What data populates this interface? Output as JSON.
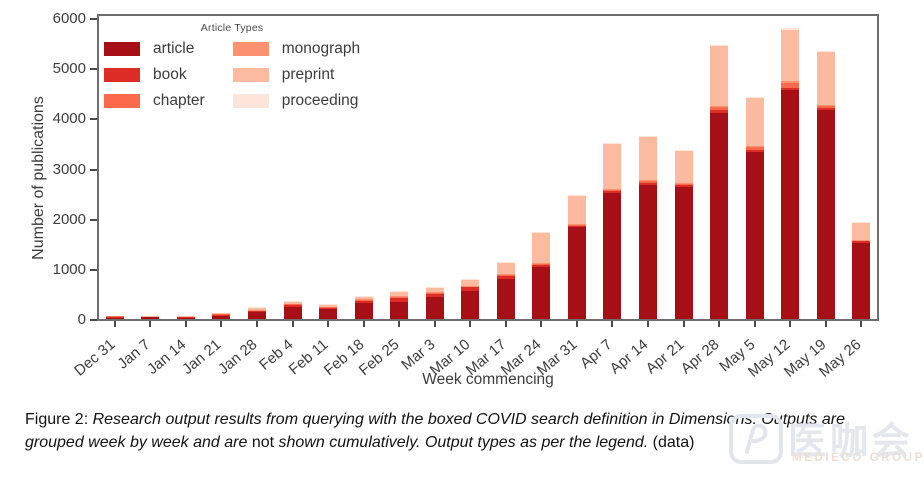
{
  "chart_data": {
    "type": "bar",
    "stacked": true,
    "title": "",
    "xlabel": "Week commencing",
    "ylabel": "Number of publications",
    "ylim": [
      0,
      6000
    ],
    "yticks": [
      0,
      1000,
      2000,
      3000,
      4000,
      5000,
      6000
    ],
    "grid": false,
    "legend_title": "Article Types",
    "legend_position": "upper-left inside plot, two columns",
    "categories": [
      "Dec 31",
      "Jan 7",
      "Jan 14",
      "Jan 21",
      "Jan 28",
      "Feb 4",
      "Feb 11",
      "Feb 18",
      "Feb 25",
      "Mar 3",
      "Mar 10",
      "Mar 17",
      "Mar 24",
      "Mar 31",
      "Apr 7",
      "Apr 14",
      "Apr 21",
      "Apr 28",
      "May 5",
      "May 12",
      "May 19",
      "May 26"
    ],
    "series": [
      {
        "name": "article",
        "color": "#a50f15",
        "values": [
          35,
          45,
          40,
          75,
          130,
          240,
          200,
          320,
          330,
          430,
          565,
          800,
          1040,
          1830,
          2520,
          2680,
          2630,
          4110,
          3330,
          4560,
          4170,
          1525
        ]
      },
      {
        "name": "book",
        "color": "#de2d26",
        "values": [
          10,
          8,
          8,
          15,
          25,
          40,
          30,
          50,
          80,
          60,
          65,
          60,
          40,
          30,
          35,
          40,
          40,
          50,
          40,
          50,
          40,
          25
        ]
      },
      {
        "name": "chapter",
        "color": "#fb6a4a",
        "values": [
          5,
          4,
          4,
          12,
          15,
          20,
          10,
          15,
          30,
          30,
          25,
          30,
          30,
          30,
          35,
          40,
          40,
          70,
          60,
          100,
          45,
          25
        ]
      },
      {
        "name": "monograph",
        "color": "#fc9272",
        "values": [
          0,
          0,
          0,
          0,
          5,
          5,
          5,
          5,
          10,
          10,
          10,
          10,
          10,
          10,
          10,
          15,
          10,
          15,
          15,
          30,
          20,
          10
        ]
      },
      {
        "name": "preprint",
        "color": "#fcbba1",
        "values": [
          0,
          5,
          5,
          8,
          45,
          40,
          35,
          55,
          90,
          100,
          130,
          230,
          600,
          570,
          900,
          860,
          630,
          1200,
          960,
          1020,
          1040,
          340
        ]
      },
      {
        "name": "proceeding",
        "color": "#fee5d9",
        "values": [
          0,
          0,
          0,
          0,
          5,
          5,
          5,
          5,
          10,
          10,
          10,
          10,
          10,
          10,
          10,
          10,
          10,
          20,
          15,
          40,
          20,
          10
        ]
      }
    ],
    "totals": [
      50,
      62,
      57,
      110,
      225,
      350,
      285,
      450,
      550,
      640,
      805,
      1140,
      1730,
      2480,
      3510,
      3645,
      3360,
      5465,
      4420,
      5800,
      5335,
      1935
    ]
  },
  "caption": {
    "prefix": "Figure 2: ",
    "italic1": "Research output results from querying with the boxed COVID search definition in Dimensions. Outputs are grouped week by week and are ",
    "emph_roman": "not",
    "italic2": " shown cumulatively. Output types as per the legend.",
    "link": " (data)"
  },
  "watermark": {
    "logo_icon": "rounded-square-p-logo",
    "text_cn": "医咖会",
    "text_en": "MEDIECO GROUP"
  },
  "colors": {
    "axis_frame": "#6e6e6e",
    "tick_text": "#3d3d3d",
    "caption_text": "#121212",
    "background": "#ffffff"
  }
}
